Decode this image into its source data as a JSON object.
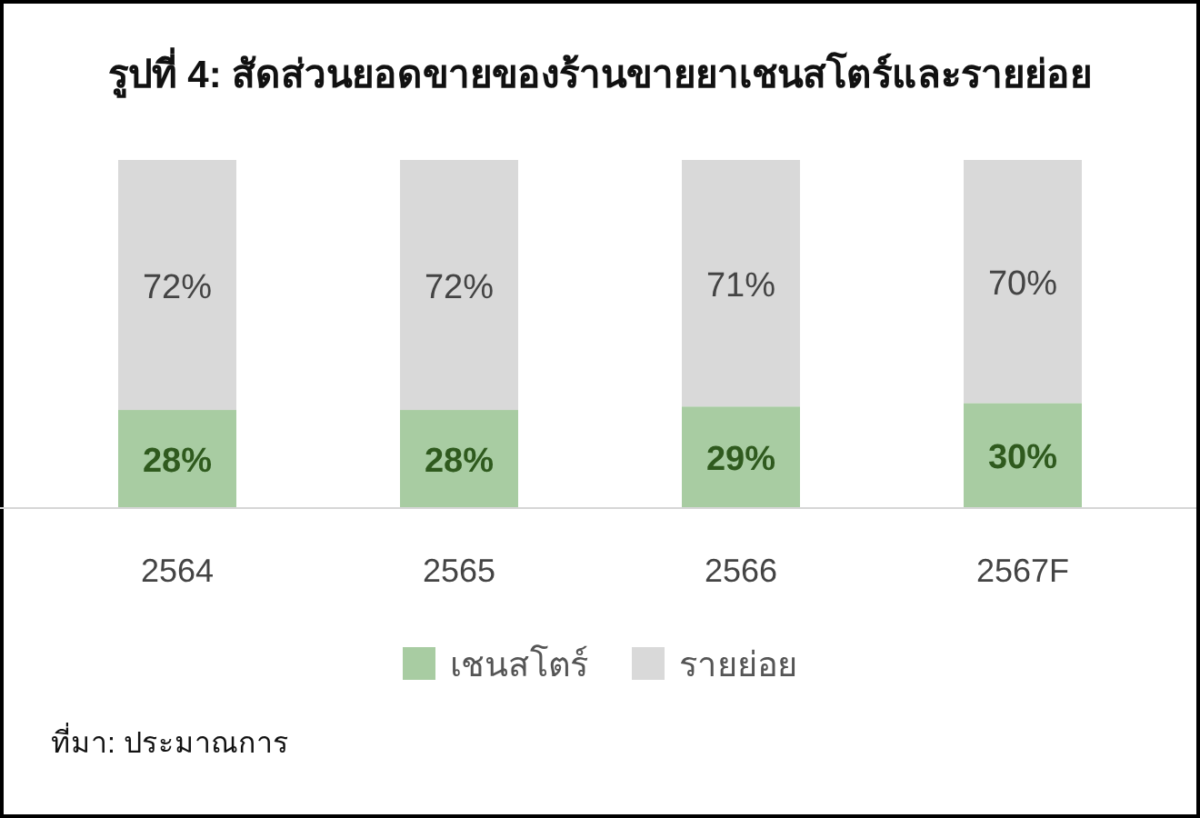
{
  "chart_data": {
    "type": "bar",
    "title": "รูปที่ 4: สัดส่วนยอดขายของร้านขายยาเชนสโตร์และรายย่อย",
    "categories": [
      "2564",
      "2565",
      "2566",
      "2567F"
    ],
    "series": [
      {
        "name": "เชนสโตร์",
        "color": "#a8cca2",
        "values": [
          28,
          28,
          29,
          30
        ],
        "value_labels": [
          "28%",
          "28%",
          "29%",
          "30%"
        ]
      },
      {
        "name": "รายย่อย",
        "color": "#d9d9d9",
        "values": [
          72,
          72,
          71,
          70
        ],
        "value_labels": [
          "72%",
          "72%",
          "71%",
          "70%"
        ]
      }
    ],
    "stacked": true,
    "legend": "bottom",
    "annotations": [
      "ที่มา: ประมาณการ"
    ]
  }
}
